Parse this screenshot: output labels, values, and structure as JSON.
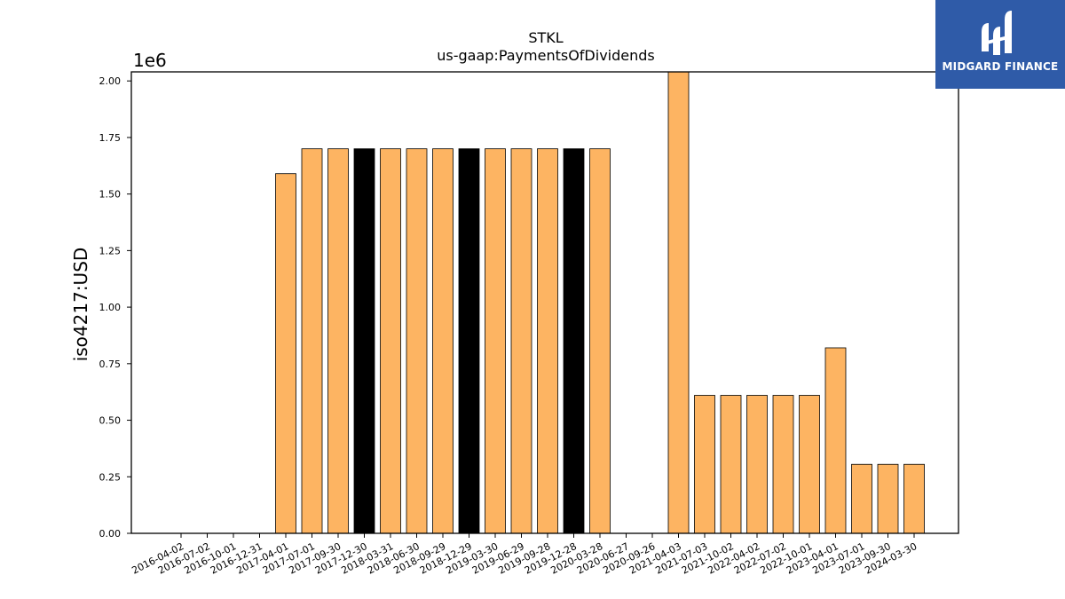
{
  "logo": {
    "text": "MIDGARD FINANCE"
  },
  "chart_data": {
    "type": "bar",
    "title": "STKL",
    "subtitle": "us-gaap:PaymentsOfDividends",
    "xlabel": "",
    "ylabel": "iso4217:USD",
    "y_offset_label": "1e6",
    "ylim": [
      0,
      2.04
    ],
    "yticks": [
      "0.00",
      "0.25",
      "0.50",
      "0.75",
      "1.00",
      "1.25",
      "1.50",
      "1.75",
      "2.00"
    ],
    "grid": false,
    "categories": [
      "2016-04-02",
      "2016-07-02",
      "2016-10-01",
      "2016-12-31",
      "2017-04-01",
      "2017-07-01",
      "2017-09-30",
      "2017-12-30",
      "2018-03-31",
      "2018-06-30",
      "2018-09-29",
      "2018-12-29",
      "2019-03-30",
      "2019-06-29",
      "2019-09-28",
      "2019-12-28",
      "2020-03-28",
      "2020-06-27",
      "2020-09-26",
      "2021-04-03",
      "2021-07-03",
      "2021-10-02",
      "2022-04-02",
      "2022-07-02",
      "2022-10-01",
      "2023-04-01",
      "2023-07-01",
      "2023-09-30",
      "2024-03-30"
    ],
    "values": [
      0,
      0,
      0,
      0,
      1.59,
      1.7,
      1.7,
      1.7,
      1.7,
      1.7,
      1.7,
      1.7,
      1.7,
      1.7,
      1.7,
      1.7,
      1.7,
      0,
      0,
      2.04,
      0.61,
      0.61,
      0.61,
      0.61,
      0.61,
      0.82,
      0.305,
      0.305,
      0.305
    ],
    "highlighted": [
      false,
      false,
      false,
      false,
      false,
      false,
      false,
      true,
      false,
      false,
      false,
      true,
      false,
      false,
      false,
      true,
      false,
      false,
      false,
      false,
      false,
      false,
      false,
      false,
      false,
      false,
      false,
      false,
      false
    ],
    "colors": {
      "bar": "#fdb462",
      "highlight": "#000000",
      "edge": "#000000"
    }
  }
}
